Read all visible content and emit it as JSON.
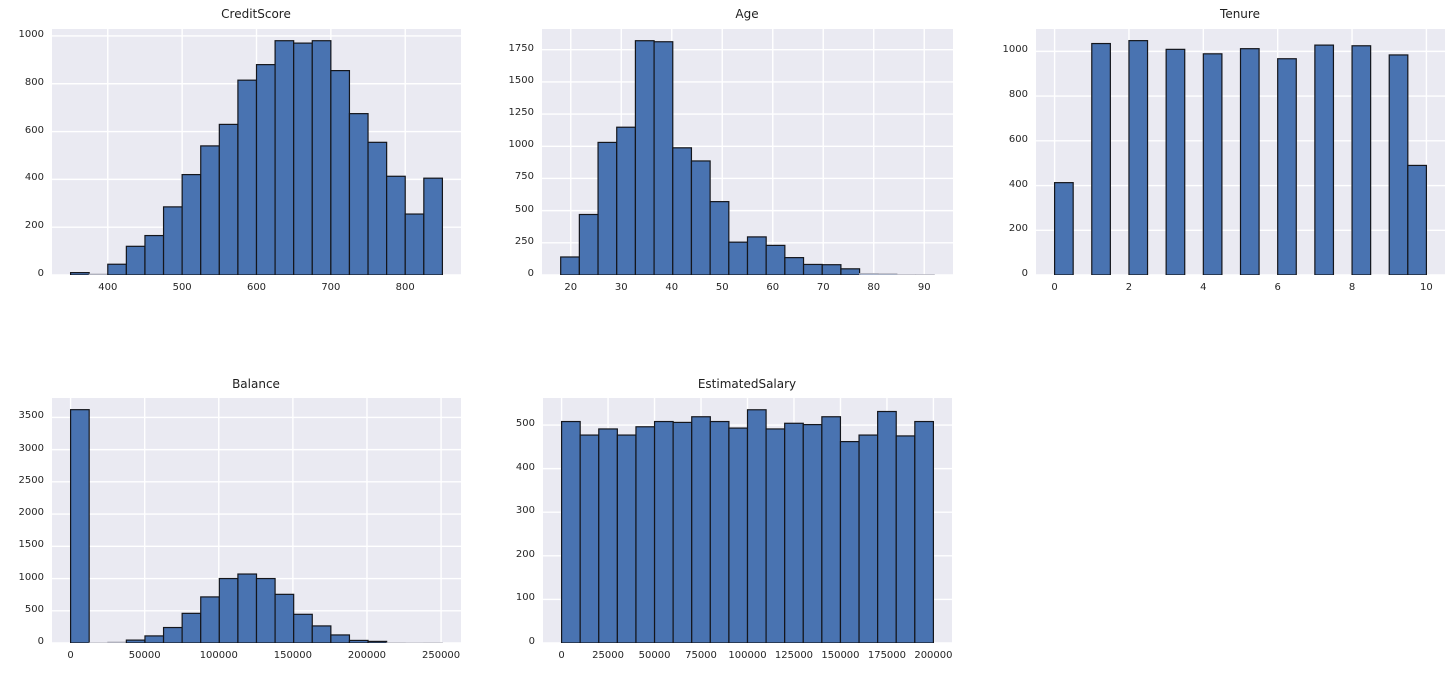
{
  "style": {
    "figure_background": "#ffffff",
    "axes_background": "#eaeaf2",
    "grid_color": "#ffffff",
    "bar_fill": "#4973b1",
    "bar_edge": "#14161c",
    "faint_bar_edge": "#b2b2bc",
    "tick_color": "#262626",
    "title_color": "#1f1f1f"
  },
  "chart_data": [
    {
      "type": "bar",
      "subtype": "histogram",
      "title": "CreditScore",
      "bin_start": 350,
      "bin_width": 25,
      "counts": [
        10,
        4,
        45,
        120,
        165,
        285,
        420,
        540,
        630,
        815,
        880,
        980,
        970,
        980,
        855,
        675,
        555,
        413,
        255,
        405
      ],
      "xlim": [
        325,
        875
      ],
      "ylim": [
        0,
        1029
      ],
      "grid": true,
      "xticks": [
        {
          "v": 400,
          "label": "400"
        },
        {
          "v": 500,
          "label": "500"
        },
        {
          "v": 600,
          "label": "600"
        },
        {
          "v": 700,
          "label": "700"
        },
        {
          "v": 800,
          "label": "800"
        }
      ],
      "yticks": [
        {
          "v": 0,
          "label": "0"
        },
        {
          "v": 200,
          "label": "200"
        },
        {
          "v": 400,
          "label": "400"
        },
        {
          "v": 600,
          "label": "600"
        },
        {
          "v": 800,
          "label": "800"
        },
        {
          "v": 1000,
          "label": "1000"
        }
      ]
    },
    {
      "type": "bar",
      "subtype": "histogram",
      "title": "Age",
      "bin_start": 18,
      "bin_width": 3.7,
      "counts": [
        140,
        470,
        1030,
        1148,
        1820,
        1812,
        988,
        886,
        570,
        255,
        296,
        230,
        135,
        82,
        80,
        48,
        12,
        10,
        2,
        2
      ],
      "xlim": [
        14.3,
        95.7
      ],
      "ylim": [
        0,
        1911
      ],
      "grid": true,
      "xticks": [
        {
          "v": 20,
          "label": "20"
        },
        {
          "v": 30,
          "label": "30"
        },
        {
          "v": 40,
          "label": "40"
        },
        {
          "v": 50,
          "label": "50"
        },
        {
          "v": 60,
          "label": "60"
        },
        {
          "v": 70,
          "label": "70"
        },
        {
          "v": 80,
          "label": "80"
        },
        {
          "v": 90,
          "label": "90"
        }
      ],
      "yticks": [
        {
          "v": 0,
          "label": "0"
        },
        {
          "v": 250,
          "label": "250"
        },
        {
          "v": 500,
          "label": "500"
        },
        {
          "v": 750,
          "label": "750"
        },
        {
          "v": 1000,
          "label": "1000"
        },
        {
          "v": 1250,
          "label": "1250"
        },
        {
          "v": 1500,
          "label": "1500"
        },
        {
          "v": 1750,
          "label": "1750"
        }
      ]
    },
    {
      "type": "bar",
      "subtype": "histogram",
      "title": "Tenure",
      "bin_start": 0,
      "bin_width": 0.5,
      "counts": [
        413,
        0,
        1035,
        0,
        1048,
        0,
        1009,
        0,
        989,
        0,
        1012,
        0,
        967,
        0,
        1028,
        0,
        1025,
        0,
        984,
        490
      ],
      "xlim": [
        -0.5,
        10.5
      ],
      "ylim": [
        0,
        1100
      ],
      "grid": true,
      "xticks": [
        {
          "v": 0,
          "label": "0"
        },
        {
          "v": 2,
          "label": "2"
        },
        {
          "v": 4,
          "label": "4"
        },
        {
          "v": 6,
          "label": "6"
        },
        {
          "v": 8,
          "label": "8"
        },
        {
          "v": 10,
          "label": "10"
        }
      ],
      "yticks": [
        {
          "v": 0,
          "label": "0"
        },
        {
          "v": 200,
          "label": "200"
        },
        {
          "v": 400,
          "label": "400"
        },
        {
          "v": 600,
          "label": "600"
        },
        {
          "v": 800,
          "label": "800"
        },
        {
          "v": 1000,
          "label": "1000"
        }
      ]
    },
    {
      "type": "bar",
      "subtype": "histogram",
      "title": "Balance",
      "bin_start": 0,
      "bin_width": 12544.9,
      "counts": [
        3620,
        2,
        15,
        45,
        110,
        240,
        460,
        715,
        1000,
        1070,
        1000,
        755,
        445,
        265,
        125,
        40,
        25,
        3,
        1,
        2
      ],
      "xlim": [
        -12545,
        263443
      ],
      "ylim": [
        0,
        3801
      ],
      "grid": true,
      "xticks": [
        {
          "v": 0,
          "label": "0"
        },
        {
          "v": 50000,
          "label": "50000"
        },
        {
          "v": 100000,
          "label": "100000"
        },
        {
          "v": 150000,
          "label": "150000"
        },
        {
          "v": 200000,
          "label": "200000"
        },
        {
          "v": 250000,
          "label": "250000"
        }
      ],
      "yticks": [
        {
          "v": 0,
          "label": "0"
        },
        {
          "v": 500,
          "label": "500"
        },
        {
          "v": 1000,
          "label": "1000"
        },
        {
          "v": 1500,
          "label": "1500"
        },
        {
          "v": 2000,
          "label": "2000"
        },
        {
          "v": 2500,
          "label": "2500"
        },
        {
          "v": 3000,
          "label": "3000"
        },
        {
          "v": 3500,
          "label": "3500"
        }
      ]
    },
    {
      "type": "bar",
      "subtype": "histogram",
      "title": "EstimatedSalary",
      "bin_start": 12,
      "bin_width": 9999,
      "counts": [
        508,
        477,
        491,
        477,
        496,
        508,
        506,
        519,
        508,
        493,
        535,
        491,
        504,
        501,
        519,
        462,
        477,
        531,
        475,
        508
      ],
      "xlim": [
        -9988,
        209991
      ],
      "ylim": [
        0,
        562
      ],
      "grid": true,
      "xticks": [
        {
          "v": 0,
          "label": "0"
        },
        {
          "v": 25000,
          "label": "25000"
        },
        {
          "v": 50000,
          "label": "50000"
        },
        {
          "v": 75000,
          "label": "75000"
        },
        {
          "v": 100000,
          "label": "100000"
        },
        {
          "v": 125000,
          "label": "125000"
        },
        {
          "v": 150000,
          "label": "150000"
        },
        {
          "v": 175000,
          "label": "175000"
        },
        {
          "v": 200000,
          "label": "200000"
        }
      ],
      "yticks": [
        {
          "v": 0,
          "label": "0"
        },
        {
          "v": 100,
          "label": "100"
        },
        {
          "v": 200,
          "label": "200"
        },
        {
          "v": 300,
          "label": "300"
        },
        {
          "v": 400,
          "label": "400"
        },
        {
          "v": 500,
          "label": "500"
        }
      ]
    }
  ]
}
